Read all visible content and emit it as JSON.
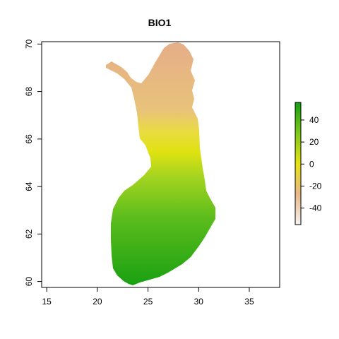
{
  "title": "BIO1",
  "map": {
    "x_ticks": [
      "15",
      "20",
      "25",
      "30",
      "35"
    ],
    "y_ticks": [
      "60",
      "62",
      "64",
      "66",
      "68",
      "70"
    ],
    "x_range": [
      14.5,
      38
    ],
    "y_range": [
      59.75,
      70.1
    ]
  },
  "legend": {
    "ticks": [
      "40",
      "20",
      "0",
      "-20",
      "-40"
    ],
    "range": [
      -55,
      56
    ],
    "colors": {
      "max": "#12a010",
      "high": "#7ec81a",
      "mid": "#e5e310",
      "low": "#e8b888",
      "min": "#f6f2f2"
    }
  }
}
